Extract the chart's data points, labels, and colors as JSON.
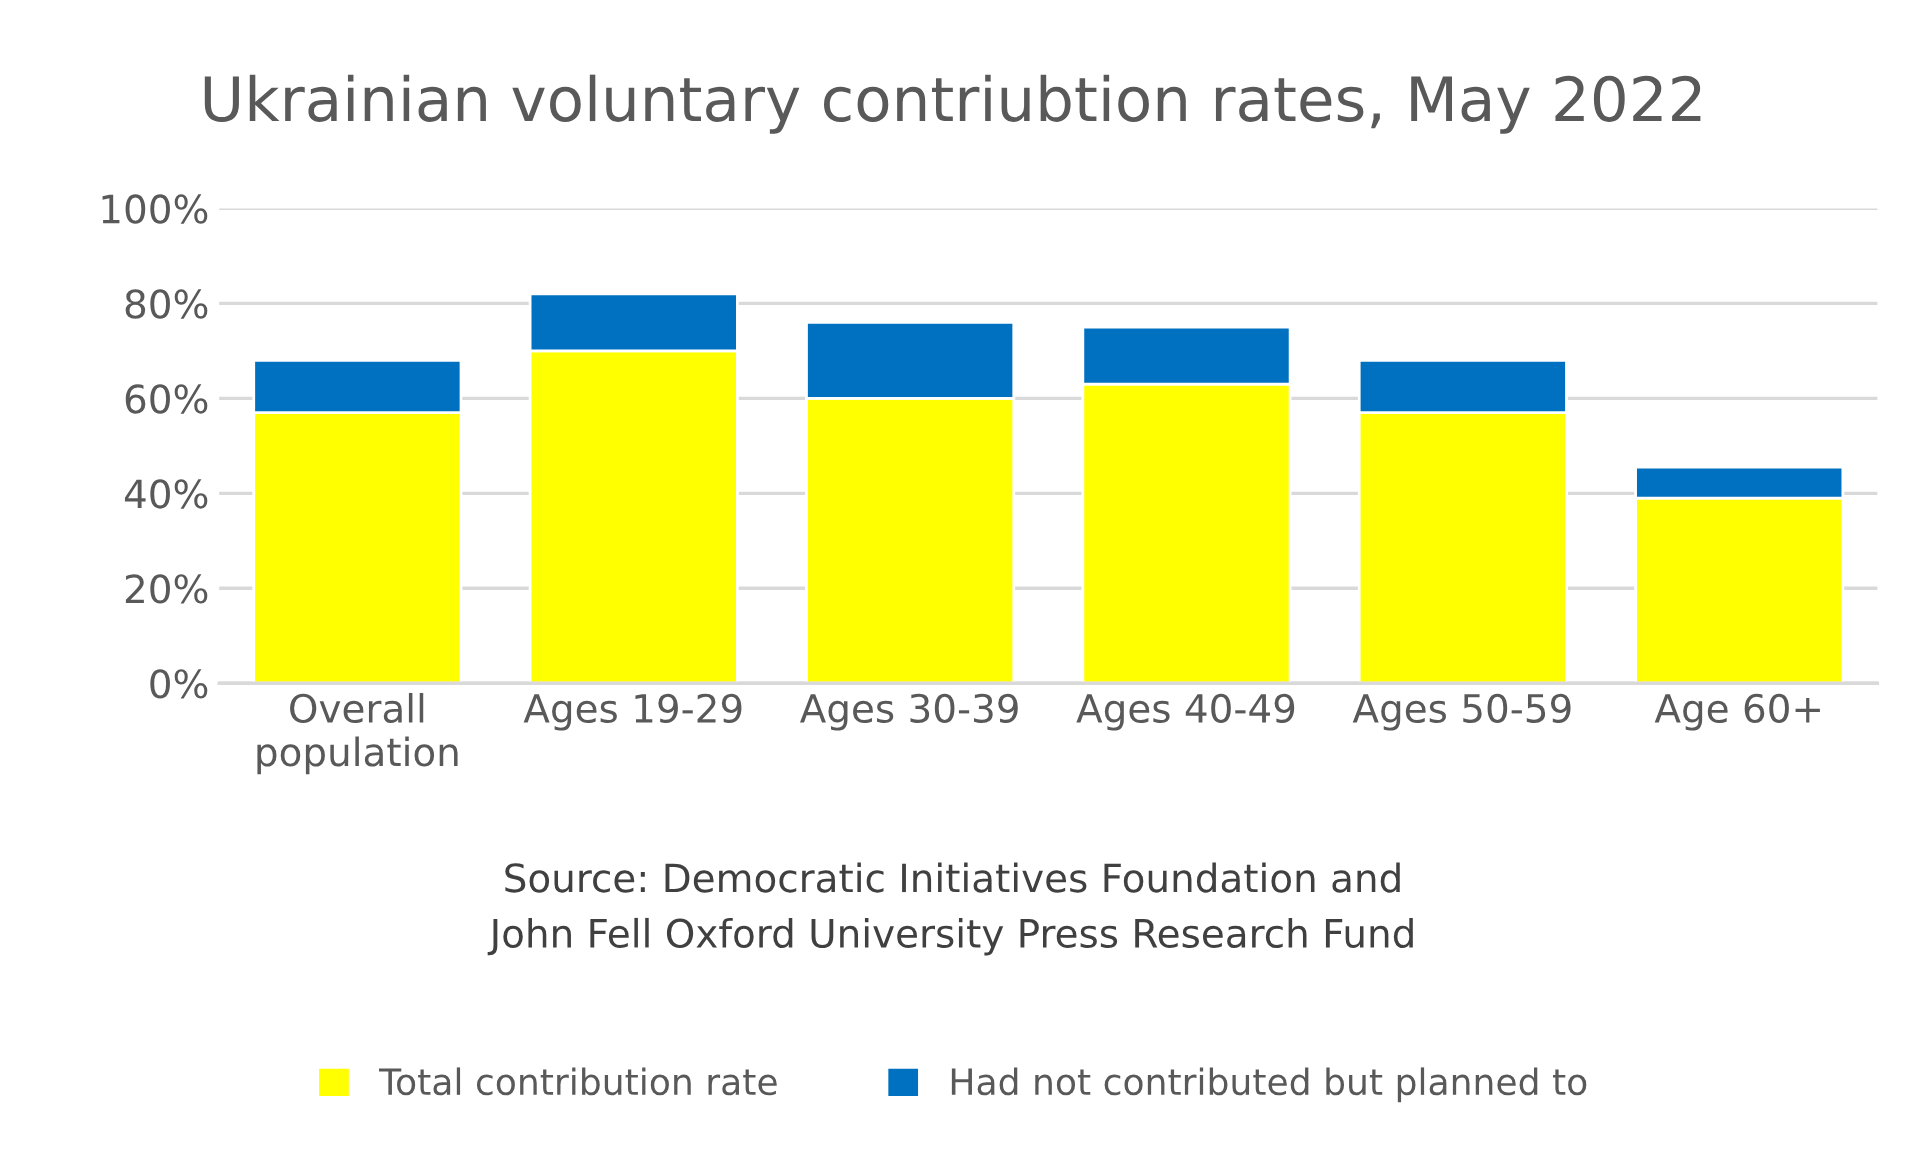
{
  "chart_data": {
    "type": "bar",
    "title": "Ukrainian voluntary contriubtion rates, May 2022",
    "categories": [
      "Overall\npopulation",
      "Ages 19-29",
      "Ages 30-39",
      "Ages 40-49",
      "Ages 50-59",
      "Age 60+"
    ],
    "series": [
      {
        "name": "Total contribution rate",
        "color": "#ffff00",
        "values": [
          57,
          70,
          60,
          63,
          57,
          39
        ]
      },
      {
        "name": "Had not contributed but planned to",
        "color": "#0070c0",
        "values": [
          11,
          12,
          16,
          12,
          11,
          6.5
        ]
      }
    ],
    "stacked": true,
    "ylim": [
      0,
      100
    ],
    "yticks": [
      {
        "value": 0,
        "label": "0%"
      },
      {
        "value": 20,
        "label": "20%"
      },
      {
        "value": 40,
        "label": "40%"
      },
      {
        "value": 60,
        "label": "60%"
      },
      {
        "value": 80,
        "label": "80%"
      },
      {
        "value": 100,
        "label": "100%"
      }
    ],
    "grid": "y",
    "legend": "bottom",
    "annotations": [
      "Source: Democratic Initiatives Foundation and\nJohn Fell Oxford University Press Research Fund"
    ]
  }
}
